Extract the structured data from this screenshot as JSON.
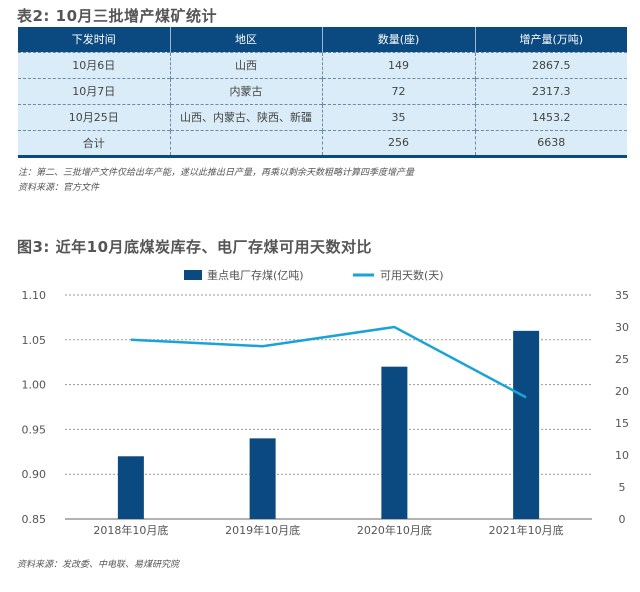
{
  "table": {
    "title": "表2: 10月三批增产煤矿统计",
    "headers": [
      "下发时间",
      "地区",
      "数量(座)",
      "增产量(万吨)"
    ],
    "rows": [
      [
        "10月6日",
        "山西",
        "149",
        "2867.5"
      ],
      [
        "10月7日",
        "内蒙古",
        "72",
        "2317.3"
      ],
      [
        "10月25日",
        "山西、内蒙古、陕西、新疆",
        "35",
        "1453.2"
      ],
      [
        "合计",
        "",
        "256",
        "6638"
      ]
    ],
    "note": "注：第二、三批增产文件仅给出年产能，遂以此推出日产量，再乘以剩余天数粗略计算四季度增产量",
    "source": "资料来源：官方文件",
    "header_color": "#0a4a80",
    "row_color": "#d9ecf8"
  },
  "chart_data": {
    "type": "bar+line",
    "title": "图3: 近年10月底煤炭库存、电厂存煤可用天数对比",
    "categories": [
      "2018年10月底",
      "2019年10月底",
      "2020年10月底",
      "2021年10月底"
    ],
    "series": [
      {
        "name": "重点电厂存煤(亿吨)",
        "type": "bar",
        "axis": "left",
        "color": "#0a4a80",
        "values": [
          0.92,
          0.94,
          1.02,
          1.06
        ]
      },
      {
        "name": "可用天数(天)",
        "type": "line",
        "axis": "right",
        "color": "#1aa3d9",
        "values": [
          28,
          27,
          30,
          19
        ]
      }
    ],
    "left_axis": {
      "ylim": [
        0.85,
        1.1
      ],
      "ticks": [
        "0.85",
        "0.90",
        "0.95",
        "1.00",
        "1.05",
        "1.10"
      ]
    },
    "right_axis": {
      "ylim": [
        0,
        35
      ],
      "ticks": [
        "0",
        "5",
        "10",
        "15",
        "20",
        "25",
        "30",
        "35"
      ]
    },
    "grid": true,
    "legend": "top",
    "source": "资料来源：发改委、中电联、易煤研究院"
  }
}
